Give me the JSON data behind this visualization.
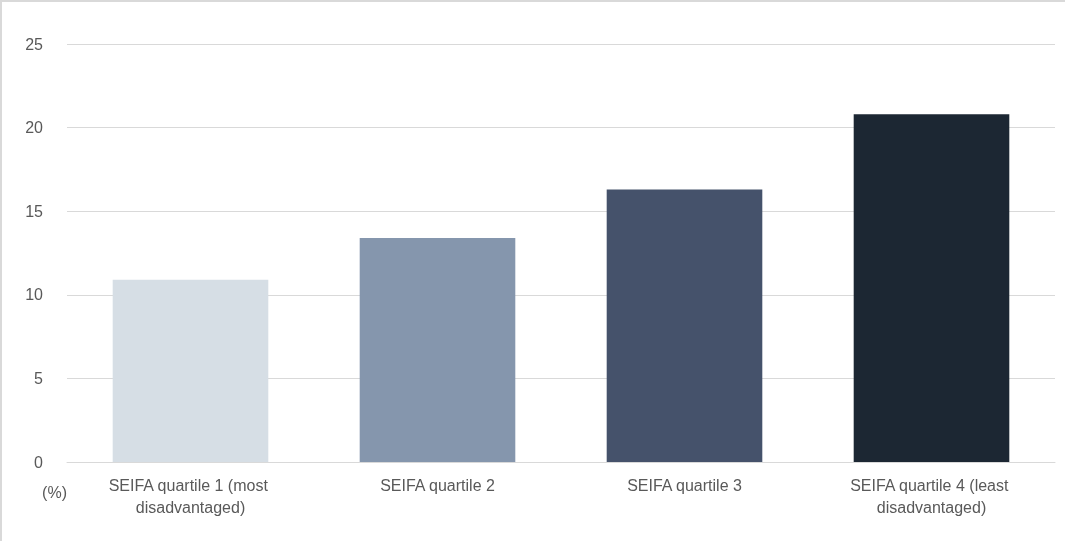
{
  "chart_data": {
    "type": "bar",
    "ylabel": "(%)",
    "categories": [
      "SEIFA quartile 1 (most disadvantaged)",
      "SEIFA quartile 2",
      "SEIFA quartile 3",
      "SEIFA quartile 4 (least disadvantaged)"
    ],
    "values": [
      10.9,
      13.4,
      16.3,
      20.8
    ],
    "colors": [
      "#d6dee5",
      "#8596ad",
      "#45526b",
      "#1c2733"
    ],
    "ylim": [
      0,
      25
    ],
    "yticks": [
      0,
      5,
      10,
      15,
      20,
      25
    ],
    "grid": "y"
  }
}
